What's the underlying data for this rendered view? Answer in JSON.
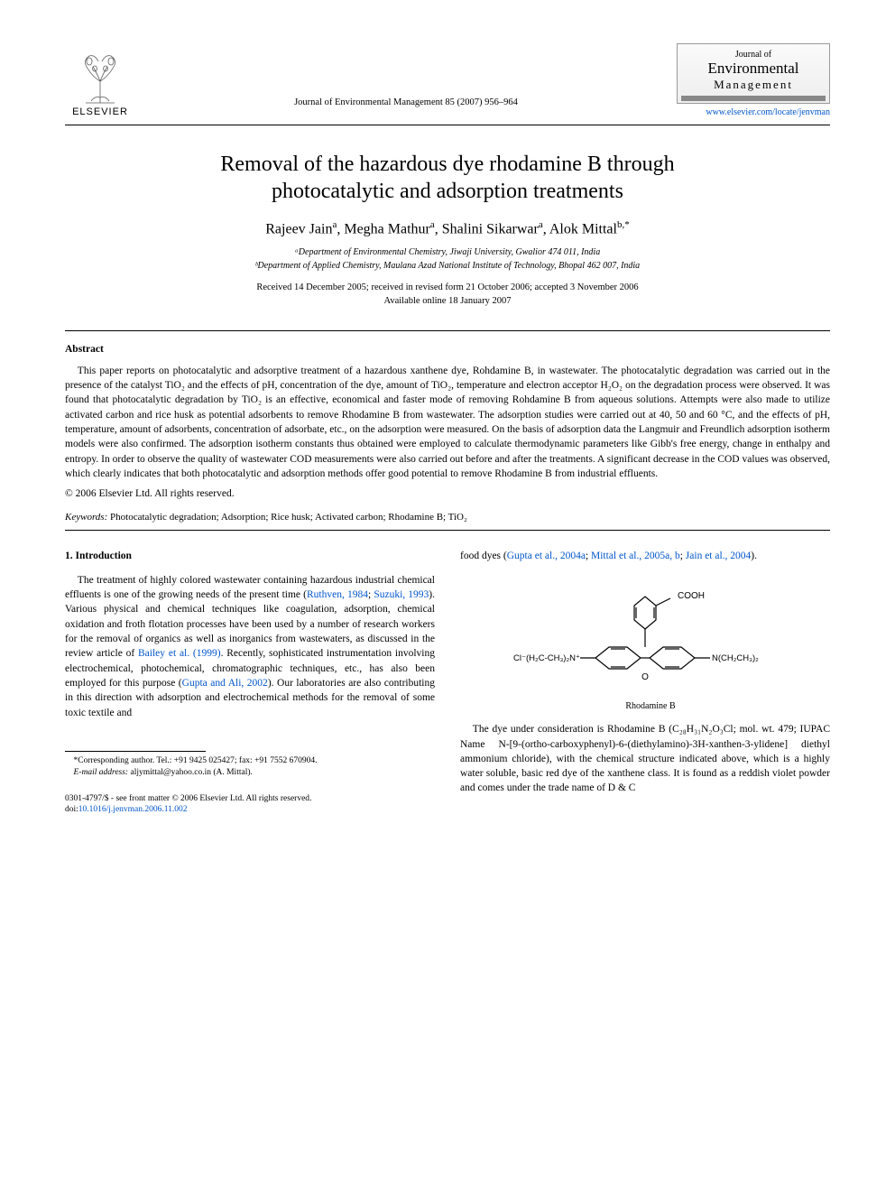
{
  "publisher": {
    "name": "ELSEVIER",
    "logo_stroke": "#5a5a5a"
  },
  "journal": {
    "ref": "Journal of Environmental Management 85 (2007) 956–964",
    "brand_small": "Journal of",
    "brand_env": "Environmental",
    "brand_mgmt": "Management",
    "link": "www.elsevier.com/locate/jenvman"
  },
  "title_line1": "Removal of the hazardous dye rhodamine B through",
  "title_line2": "photocatalytic and adsorption treatments",
  "authors_html": "Rajeev Jain<sup>a</sup>, Megha Mathur<sup>a</sup>, Shalini Sikarwar<sup>a</sup>, Alok Mittal<sup>b,*</sup>",
  "affil_a": "ᵃDepartment of Environmental Chemistry, Jiwaji University, Gwalior 474 011, India",
  "affil_b": "ᵇDepartment of Applied Chemistry, Maulana Azad National Institute of Technology, Bhopal 462 007, India",
  "dates_line1": "Received 14 December 2005; received in revised form 21 October 2006; accepted 3 November 2006",
  "dates_line2": "Available online 18 January 2007",
  "abstract_label": "Abstract",
  "abstract_text": "This paper reports on photocatalytic and adsorptive treatment of a hazardous xanthene dye, Rohdamine B, in wastewater. The photocatalytic degradation was carried out in the presence of the catalyst TiO₂ and the effects of pH, concentration of the dye, amount of TiO₂, temperature and electron acceptor H₂O₂ on the degradation process were observed. It was found that photocatalytic degradation by TiO₂ is an effective, economical and faster mode of removing Rohdamine B from aqueous solutions. Attempts were also made to utilize activated carbon and rice husk as potential adsorbents to remove Rhodamine B from wastewater. The adsorption studies were carried out at 40, 50 and 60 °C, and the effects of pH, temperature, amount of adsorbents, concentration of adsorbate, etc., on the adsorption were measured. On the basis of adsorption data the Langmuir and Freundlich adsorption isotherm models were also confirmed. The adsorption isotherm constants thus obtained were employed to calculate thermodynamic parameters like Gibb's free energy, change in enthalpy and entropy. In order to observe the quality of wastewater COD measurements were also carried out before and after the treatments. A significant decrease in the COD values was observed, which clearly indicates that both photocatalytic and adsorption methods offer good potential to remove Rhodamine B from industrial effluents.",
  "copyright": "© 2006 Elsevier Ltd. All rights reserved.",
  "keywords_label": "Keywords:",
  "keywords_text": " Photocatalytic degradation; Adsorption; Rice husk; Activated carbon; Rhodamine B; TiO₂",
  "intro_head": "1. Introduction",
  "intro_p1_a": "The treatment of highly colored wastewater containing hazardous industrial chemical effluents is one of the growing needs of the present time (",
  "intro_p1_cite1": "Ruthven, 1984",
  "intro_p1_b": "; ",
  "intro_p1_cite2": "Suzuki, 1993",
  "intro_p1_c": "). Various physical and chemical techniques like coagulation, adsorption, chemical oxidation and froth flotation processes have been used by a number of research workers for the removal of organics as well as inorganics from wastewaters, as discussed in the review article of ",
  "intro_p1_cite3": "Bailey et al. (1999)",
  "intro_p1_d": ". Recently, sophisticated instrumentation involving electrochemical, photochemical, chromatographic techniques, etc., has also been employed for this purpose (",
  "intro_p1_cite4": "Gupta and Ali, 2002",
  "intro_p1_e": "). Our laboratories are also contributing in this direction with adsorption and electrochemical methods for the removal of some toxic textile and",
  "col2_p1_a": "food dyes (",
  "col2_p1_cite1": "Gupta et al., 2004a",
  "col2_p1_b": "; ",
  "col2_p1_cite2": "Mittal et al., 2005a, b",
  "col2_p1_c": "; ",
  "col2_p1_cite3": "Jain et al., 2004",
  "col2_p1_d": ").",
  "chem": {
    "left_label": "Cl⁻(H₂C-CH₃)₂N⁺",
    "right_label": "N(CH₂CH₃)₂",
    "cooh": "COOH",
    "oxygen": "O",
    "caption": "Rhodamine B",
    "line_color": "#000000"
  },
  "col2_p2": "The dye under consideration is Rhodamine B (C₂₈H₃₁N₂O₃Cl; mol. wt. 479; IUPAC Name N-[9-(ortho-carboxyphenyl)-6-(diethylamino)-3H-xanthen-3-ylidene] diethyl ammonium chloride), with the chemical structure indicated above, which is a highly water soluble, basic red dye of the xanthene class. It is found as a reddish violet powder and comes under the trade name of D & C",
  "footnote_line1": "*Corresponding author. Tel.: +91 9425 025427; fax: +91 7552 670904.",
  "footnote_email_label": "E-mail address:",
  "footnote_email": " aljymittal@yahoo.co.in (A. Mittal).",
  "footer_line1": "0301-4797/$ - see front matter © 2006 Elsevier Ltd. All rights reserved.",
  "footer_doi_label": "doi:",
  "footer_doi": "10.1016/j.jenvman.2006.11.002",
  "colors": {
    "link": "#0055cc",
    "text": "#000000",
    "rule": "#000000"
  }
}
